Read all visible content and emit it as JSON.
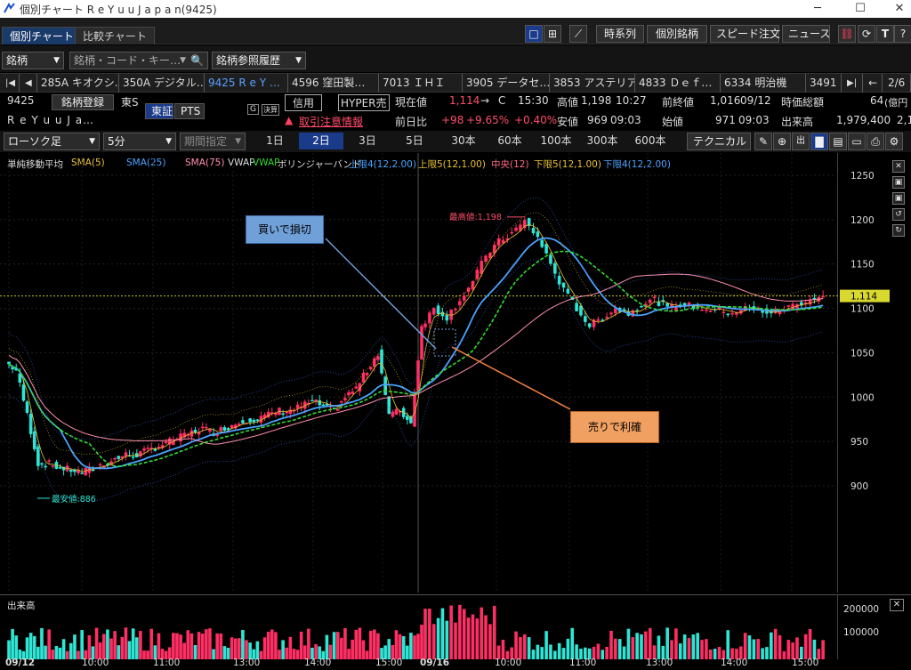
{
  "window": {
    "title": "個別チャート R e Y u u J a p a n(9425)"
  },
  "tabs": [
    {
      "label": "個別チャート"
    },
    {
      "label": "比較チャート"
    }
  ],
  "top_buttons": {
    "jikeiretsu": "時系列",
    "kobetsu": "個別銘柄",
    "speed": "スピード注文",
    "news": "ニュース"
  },
  "toolbar1": {
    "meigara": "銘柄",
    "search_placeholder": "銘柄・コード・キー…",
    "history": "銘柄参照履歴"
  },
  "stock_tabs": [
    {
      "label": "285A キオクシ…"
    },
    {
      "label": "350A デジタル…"
    },
    {
      "label": "9425 R e Y …"
    },
    {
      "label": "4596 窪田製…"
    },
    {
      "label": "7013 ＩＨＩ"
    },
    {
      "label": "3905 データセ…"
    },
    {
      "label": "3853 アステリア"
    },
    {
      "label": "4833 Ｄｅｆ…"
    },
    {
      "label": "6334 明治機"
    },
    {
      "label": "3491"
    }
  ],
  "paging": "2/6",
  "quote": {
    "code": "9425",
    "name": "R e Y u u J a…",
    "register": "銘柄登録",
    "market": "東S",
    "tosho": "東証",
    "pts": "PTS",
    "g": "G",
    "kessan": "決算",
    "shinyo": "信用",
    "hyper": "HYPER売",
    "caution": "取引注意情報",
    "genzai_label": "現在値",
    "genzai": "1,114",
    "genzai_arrow": "→",
    "genzai_c": "C",
    "genzai_time": "15:30",
    "takane_label": "高値",
    "takane": "1,198",
    "takane_time": "10:27",
    "zenshu_label": "前終値",
    "zenshu": "1,016",
    "zenshu_date": "09/12",
    "jika_label": "時価総額",
    "jika": "64",
    "jika_unit": "(億円",
    "zenjitsu_label": "前日比",
    "zenjitsu": "+98",
    "zenjitsu_pct": "+9.65%",
    "zenjitsu_pct2": "+0.40%",
    "yasune_label": "安値",
    "yasune": "969",
    "yasune_time": "09:03",
    "hajime_label": "始値",
    "hajime": "971",
    "hajime_time": "09:03",
    "dekidaka_label": "出来高",
    "dekidaka": "1,979,400",
    "dekidaka_cut": "2,1"
  },
  "toolbar2": {
    "chart_type": "ローソク足",
    "interval": "5分",
    "period": "期間指定",
    "periods": [
      "1日",
      "2日",
      "3日",
      "5日",
      "30本",
      "60本",
      "100本",
      "300本",
      "600本"
    ],
    "technical": "テクニカル"
  },
  "legend": {
    "items": [
      {
        "text": "単純移動平均",
        "color": "#dddddd"
      },
      {
        "text": "SMA(5)",
        "color": "#e8c230"
      },
      {
        "text": "SMA(25)",
        "color": "#4aa3ff"
      },
      {
        "text": "SMA(75)",
        "color": "#ff8fb0"
      },
      {
        "text": "VWAP",
        "color": "#dddddd"
      },
      {
        "text": "VWAP",
        "color": "#33dd33"
      },
      {
        "text": "ボリンジャーバンド",
        "color": "#dddddd"
      },
      {
        "text": "上限4(12,2.00)",
        "color": "#4aa3ff"
      },
      {
        "text": "上限5(12,1.00)",
        "color": "#e8c230"
      },
      {
        "text": "中央(12)",
        "color": "#ff6a80"
      },
      {
        "text": "下限5(12,1.00)",
        "color": "#e8c230"
      },
      {
        "text": "下限4(12,2.00)",
        "color": "#4aa3ff"
      }
    ]
  },
  "chart_data": {
    "type": "candlestick",
    "y_ticks": [
      1250,
      1200,
      1150,
      1100,
      1050,
      1000,
      950,
      900
    ],
    "ylim": [
      860,
      1270
    ],
    "current_price": 1114,
    "current_price_label": "1,114",
    "high_label": "最高値:1,198",
    "low_label": "最安値:886",
    "x_ticks": [
      "09/12",
      "10:00",
      "11:00",
      "13:00",
      "14:00",
      "15:00",
      "09/16",
      "10:00",
      "11:00",
      "13:00",
      "14:00",
      "15:00"
    ],
    "volume_label": "出来高",
    "volume_ticks": [
      "200000",
      "100000"
    ],
    "day1_close_trend": [
      1040,
      1030,
      980,
      925,
      925,
      920,
      918,
      915,
      920,
      925,
      930,
      935,
      935,
      940,
      945,
      950,
      955,
      960,
      965,
      960,
      965,
      970,
      975,
      975,
      980,
      985,
      985,
      990,
      995,
      990,
      985,
      1000,
      1010,
      1030,
      1050,
      980,
      985,
      970
    ],
    "day2_close_trend": [
      1080,
      1100,
      1090,
      1110,
      1130,
      1160,
      1175,
      1185,
      1198,
      1180,
      1150,
      1120,
      1100,
      1080,
      1090,
      1100,
      1095,
      1105,
      1110,
      1100,
      1105,
      1102,
      1100,
      1098,
      1096,
      1100,
      1098,
      1095,
      1100,
      1105,
      1110,
      1114
    ]
  },
  "annotations": {
    "buy_stop": "買いで損切",
    "sell_profit": "売りで利確"
  },
  "colors": {
    "up": "#ff2e63",
    "down": "#2ee6d6",
    "sma25": "#4aa3ff",
    "vwap": "#33dd33",
    "sma75": "#ff8fb0",
    "yellow": "#e8c230"
  }
}
